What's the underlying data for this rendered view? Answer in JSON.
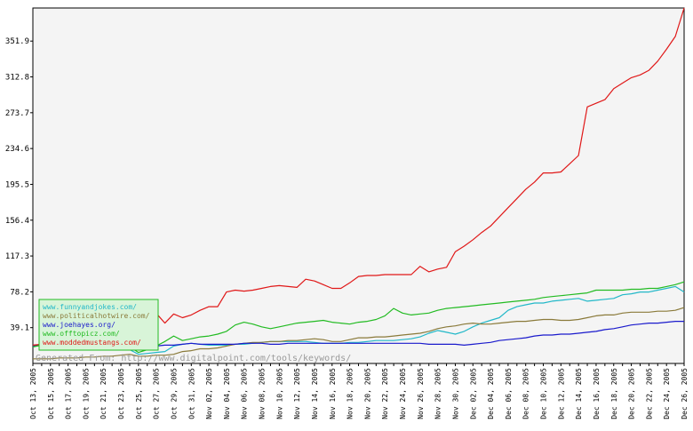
{
  "chart_data": {
    "type": "line",
    "credit": "Generated From: http://www.digitalpoint.com/tools/keywords/",
    "ylim": [
      0,
      388
    ],
    "y_ticks": [
      "39.1",
      "78.2",
      "117.3",
      "156.4",
      "195.5",
      "234.6",
      "273.7",
      "312.8",
      "351.9"
    ],
    "grid": false,
    "legend_placement": "bottom-left",
    "x": [
      "Oct 13, 2005",
      "Oct 14, 2005",
      "Oct 15, 2005",
      "Oct 16, 2005",
      "Oct 17, 2005",
      "Oct 18, 2005",
      "Oct 19, 2005",
      "Oct 20, 2005",
      "Oct 21, 2005",
      "Oct 22, 2005",
      "Oct 23, 2005",
      "Oct 24, 2005",
      "Oct 25, 2005",
      "Oct 26, 2005",
      "Oct 27, 2005",
      "Oct 28, 2005",
      "Oct 29, 2005",
      "Oct 30, 2005",
      "Oct 31, 2005",
      "Nov 01, 2005",
      "Nov 02, 2005",
      "Nov 03, 2005",
      "Nov 04, 2005",
      "Nov 05, 2005",
      "Nov 06, 2005",
      "Nov 07, 2005",
      "Nov 08, 2005",
      "Nov 09, 2005",
      "Nov 10, 2005",
      "Nov 11, 2005",
      "Nov 12, 2005",
      "Nov 13, 2005",
      "Nov 14, 2005",
      "Nov 15, 2005",
      "Nov 16, 2005",
      "Nov 17, 2005",
      "Nov 18, 2005",
      "Nov 19, 2005",
      "Nov 20, 2005",
      "Nov 21, 2005",
      "Nov 22, 2005",
      "Nov 23, 2005",
      "Nov 24, 2005",
      "Nov 25, 2005",
      "Nov 26, 2005",
      "Nov 27, 2005",
      "Nov 28, 2005",
      "Nov 29, 2005",
      "Nov 30, 2005",
      "Dec 01, 2005",
      "Dec 02, 2005",
      "Dec 03, 2005",
      "Dec 04, 2005",
      "Dec 05, 2005",
      "Dec 06, 2005",
      "Dec 07, 2005",
      "Dec 08, 2005",
      "Dec 09, 2005",
      "Dec 10, 2005",
      "Dec 11, 2005",
      "Dec 12, 2005",
      "Dec 13, 2005",
      "Dec 14, 2005",
      "Dec 15, 2005",
      "Dec 16, 2005",
      "Dec 17, 2005",
      "Dec 18, 2005",
      "Dec 19, 2005",
      "Dec 20, 2005",
      "Dec 21, 2005",
      "Dec 22, 2005",
      "Dec 23, 2005",
      "Dec 24, 2005",
      "Dec 25, 2005",
      "Dec 26, 2005"
    ],
    "x_label_every": 2,
    "series": [
      {
        "name": "www.funnyandjokes.com/",
        "color": "#22b8c8",
        "values": [
          19,
          20,
          20,
          21,
          21,
          21,
          20,
          20,
          19,
          18,
          17,
          15,
          10,
          11,
          12,
          13,
          19,
          21,
          22,
          21,
          20,
          20,
          20,
          21,
          21,
          22,
          23,
          24,
          24,
          24,
          24,
          24,
          23,
          22,
          22,
          22,
          23,
          23,
          24,
          25,
          25,
          25,
          26,
          27,
          29,
          33,
          36,
          34,
          32,
          35,
          40,
          44,
          47,
          50,
          58,
          62,
          64,
          66,
          66,
          68,
          69,
          70,
          71,
          68,
          69,
          70,
          71,
          75,
          76,
          78,
          78,
          80,
          82,
          84,
          78
        ]
      },
      {
        "name": "www.politicalhotwire.com/",
        "color": "#8a7a3a",
        "values": [
          5,
          5,
          5,
          6,
          6,
          6,
          7,
          7,
          8,
          8,
          9,
          10,
          8,
          8,
          9,
          9,
          10,
          13,
          14,
          16,
          16,
          17,
          19,
          21,
          22,
          23,
          23,
          24,
          24,
          25,
          25,
          26,
          27,
          26,
          24,
          24,
          26,
          28,
          28,
          29,
          29,
          30,
          31,
          32,
          33,
          35,
          38,
          40,
          41,
          43,
          44,
          43,
          43,
          44,
          45,
          46,
          46,
          47,
          48,
          48,
          47,
          47,
          48,
          50,
          52,
          53,
          53,
          55,
          56,
          56,
          56,
          57,
          57,
          58,
          61
        ]
      },
      {
        "name": "www.joehayes.org/",
        "color": "#1a1acc",
        "values": [
          19,
          20,
          21,
          20,
          19,
          19,
          18,
          18,
          18,
          18,
          17,
          16,
          15,
          18,
          19,
          20,
          20,
          21,
          22,
          21,
          21,
          21,
          21,
          21,
          22,
          22,
          22,
          21,
          21,
          22,
          22,
          22,
          22,
          22,
          22,
          22,
          22,
          22,
          22,
          22,
          22,
          22,
          22,
          22,
          22,
          21,
          21,
          21,
          21,
          20,
          21,
          22,
          23,
          25,
          26,
          27,
          28,
          30,
          31,
          31,
          32,
          32,
          33,
          34,
          35,
          37,
          38,
          40,
          42,
          43,
          44,
          44,
          45,
          46,
          46
        ]
      },
      {
        "name": "www.offtopicz.com/",
        "color": "#22bb22",
        "values": [
          18,
          20,
          22,
          24,
          25,
          24,
          24,
          22,
          21,
          20,
          19,
          18,
          12,
          15,
          19,
          24,
          30,
          25,
          27,
          29,
          30,
          32,
          35,
          42,
          45,
          43,
          40,
          38,
          40,
          42,
          44,
          45,
          46,
          47,
          45,
          44,
          43,
          45,
          46,
          48,
          52,
          60,
          55,
          53,
          54,
          55,
          58,
          60,
          61,
          62,
          63,
          64,
          65,
          66,
          67,
          68,
          69,
          70,
          72,
          73,
          74,
          75,
          76,
          77,
          80,
          80,
          80,
          80,
          81,
          81,
          82,
          82,
          84,
          86,
          89
        ]
      },
      {
        "name": "www.moddedmustangs.com/",
        "color": "#e01818",
        "values": [
          20,
          21,
          22,
          22,
          23,
          23,
          24,
          23,
          24,
          23,
          22,
          21,
          18,
          25,
          55,
          44,
          54,
          50,
          53,
          58,
          62,
          62,
          78,
          80,
          79,
          80,
          82,
          84,
          85,
          84,
          83,
          92,
          90,
          86,
          82,
          82,
          88,
          95,
          96,
          96,
          97,
          97,
          97,
          97,
          106,
          100,
          103,
          105,
          122,
          128,
          135,
          143,
          150,
          160,
          170,
          180,
          190,
          198,
          208,
          208,
          209,
          218,
          227,
          280,
          284,
          288,
          300,
          306,
          312,
          315,
          320,
          330,
          343,
          357,
          388
        ]
      }
    ]
  }
}
